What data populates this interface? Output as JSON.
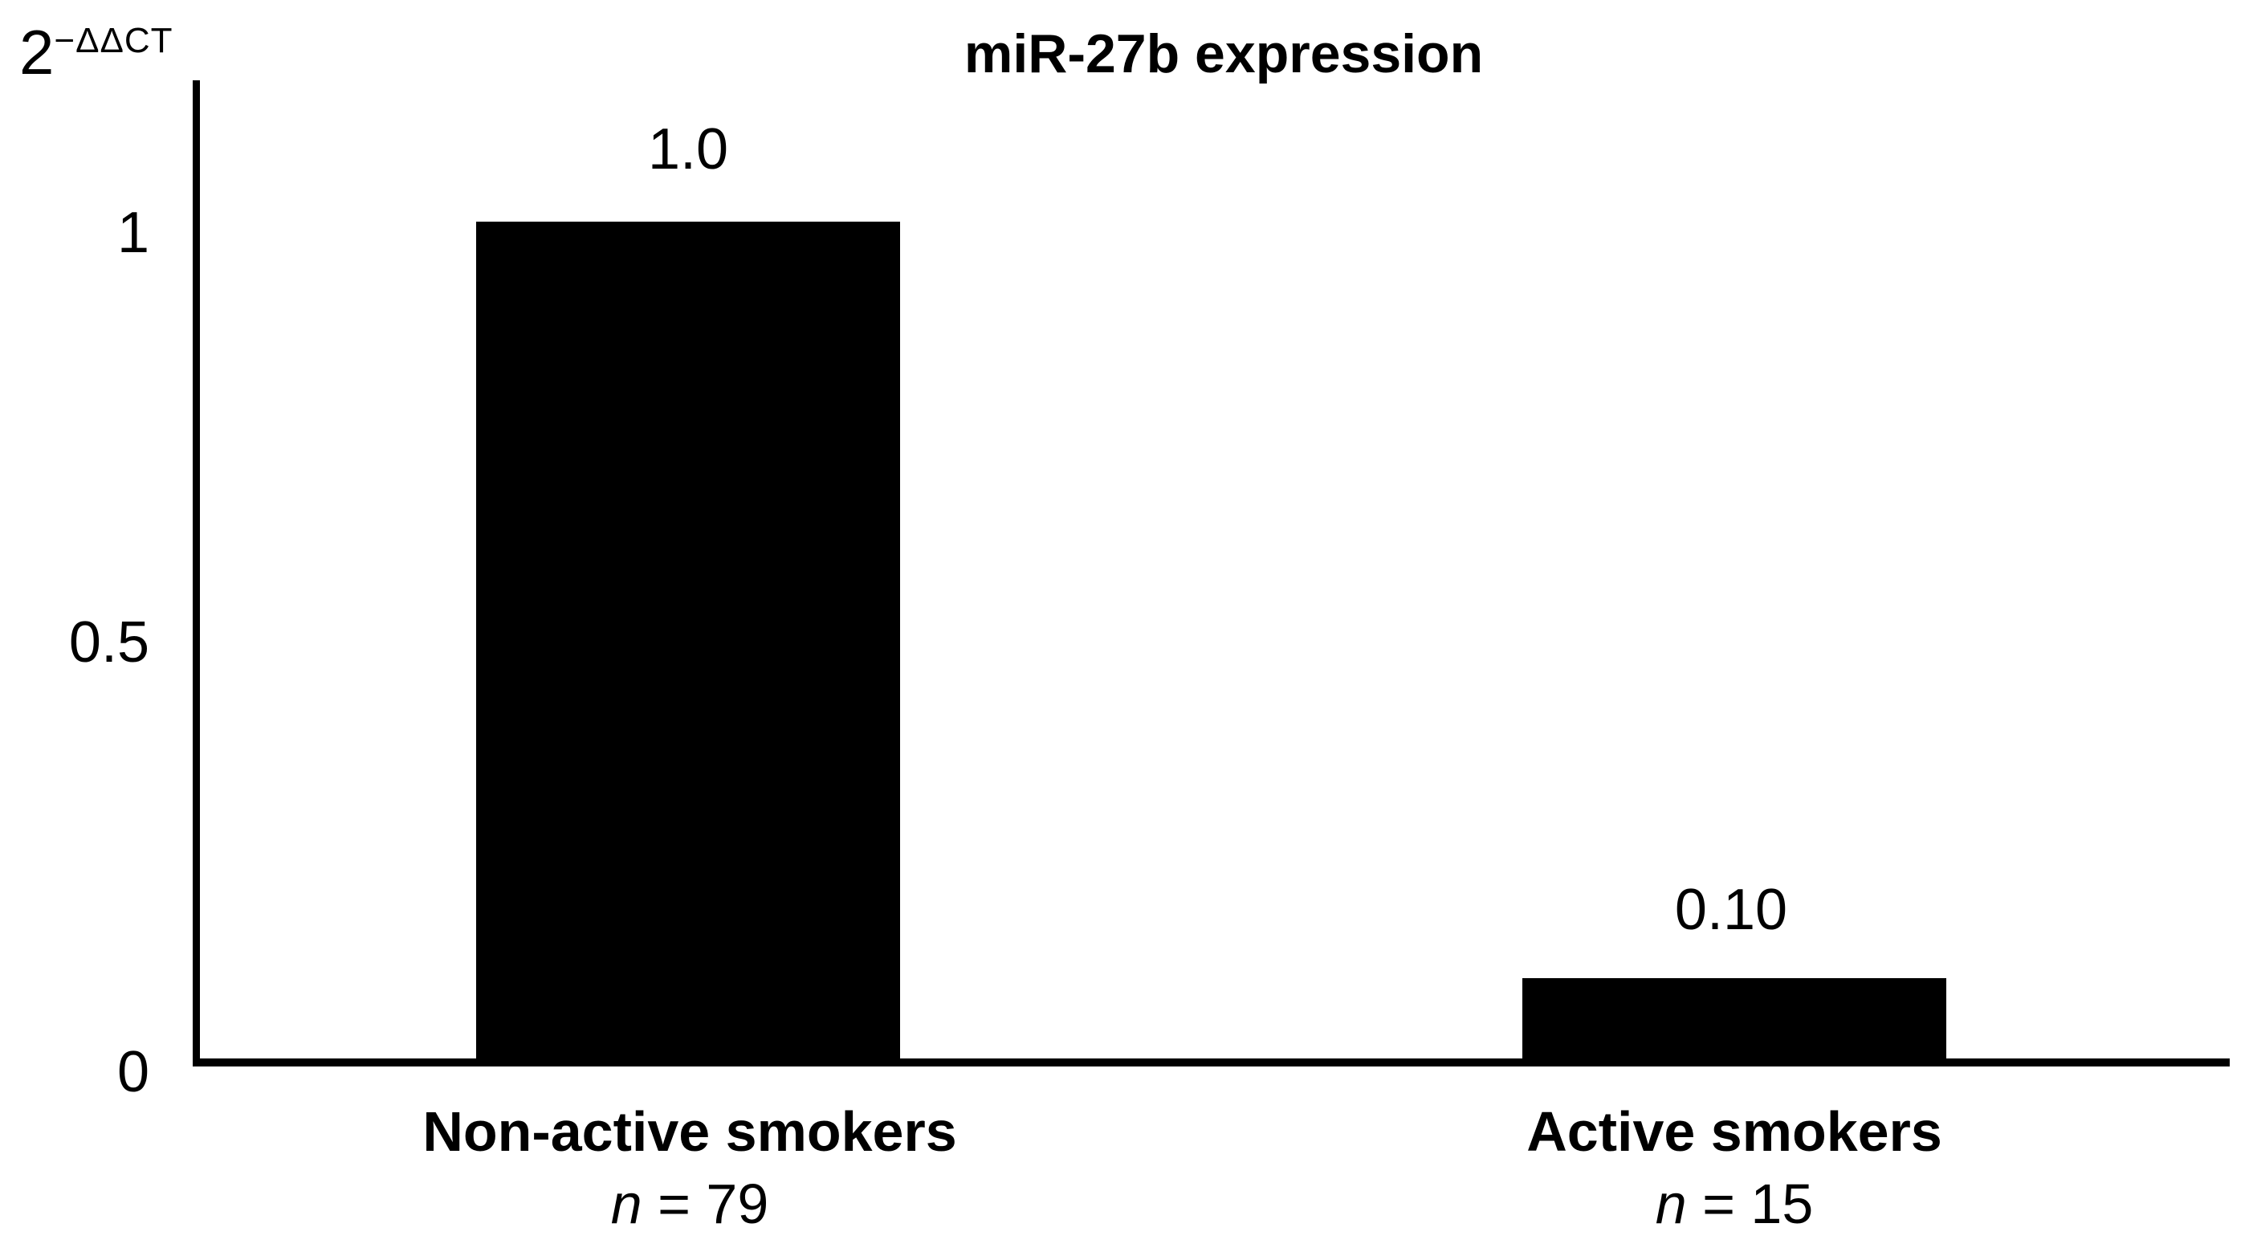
{
  "figure": {
    "title": "miR-27b expression",
    "y_axis": {
      "base": "2",
      "exponent": "−ΔΔCT",
      "tick_labels_top_to_bottom": [
        "1",
        "0.5",
        "0"
      ]
    }
  },
  "chart_data": {
    "type": "bar",
    "title": "miR-27b expression",
    "ylabel": "2^−ΔΔCT",
    "xlabel": "",
    "categories": [
      {
        "label": "Non-active smokers",
        "n_symbol": "n",
        "n_text": " = 79",
        "n": 79
      },
      {
        "label": "Active smokers",
        "n_symbol": "n",
        "n_text": " = 15",
        "n": 15
      }
    ],
    "values": [
      1.0,
      0.1
    ],
    "bar_labels": [
      "1.0",
      "0.10"
    ],
    "yticks": [
      0,
      0.5,
      1
    ],
    "ylim": [
      0,
      1.17
    ],
    "bar_color": "#000000",
    "axis_color": "#000000",
    "background": "#ffffff",
    "grid": false,
    "legend": false
  }
}
